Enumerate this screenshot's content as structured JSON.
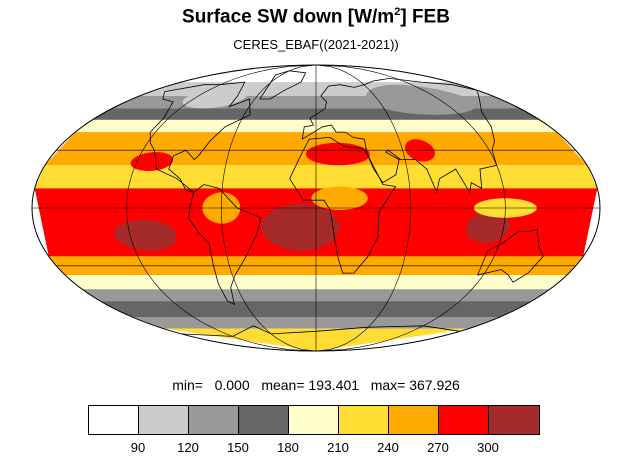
{
  "header": {
    "title_main": "Surface SW down [W/m",
    "title_sup": "2",
    "title_end": "]  FEB",
    "subtitle": "CERES_EBAF((2021-2021))"
  },
  "stats": {
    "min_label": "min=",
    "min": "0.000",
    "mean_label": "mean=",
    "mean": "193.401",
    "max_label": "max=",
    "max": "367.926"
  },
  "colorbar": {
    "colors": [
      "#ffffff",
      "#cccccc",
      "#999999",
      "#666666",
      "#ffffcc",
      "#ffdd33",
      "#ffaa00",
      "#ff0000",
      "#a52a2a"
    ],
    "labels": [
      "90",
      "120",
      "150",
      "180",
      "210",
      "240",
      "270",
      "300"
    ]
  },
  "map": {
    "projection": "Mollweide",
    "bands": [
      {
        "lat": [
          90,
          72
        ],
        "class": 0
      },
      {
        "lat": [
          72,
          62
        ],
        "class": 1
      },
      {
        "lat": [
          62,
          54
        ],
        "class": 2
      },
      {
        "lat": [
          54,
          47
        ],
        "class": 3
      },
      {
        "lat": [
          47,
          40
        ],
        "class": 4
      },
      {
        "lat": [
          40,
          22
        ],
        "class": 6
      },
      {
        "lat": [
          22,
          10
        ],
        "class": 5
      },
      {
        "lat": [
          10,
          -25
        ],
        "class": 7
      },
      {
        "lat": [
          -25,
          -35
        ],
        "class": 6
      },
      {
        "lat": [
          -35,
          -43
        ],
        "class": 4
      },
      {
        "lat": [
          -43,
          -50
        ],
        "class": 2
      },
      {
        "lat": [
          -50,
          -60
        ],
        "class": 3
      },
      {
        "lat": [
          -60,
          -68
        ],
        "class": 2
      },
      {
        "lat": [
          -68,
          -90
        ],
        "class": 5
      }
    ],
    "patches": [
      {
        "lat": 28,
        "lon": 15,
        "rlat": 6,
        "rlon": 22,
        "class": 7
      },
      {
        "lat": 24,
        "lon": -110,
        "rlat": 5,
        "rlon": 14,
        "class": 7
      },
      {
        "lat": 30,
        "lon": 72,
        "rlat": 6,
        "rlon": 10,
        "class": 7
      },
      {
        "lat": -10,
        "lon": -10,
        "rlat": 12,
        "rlon": 25,
        "class": 8
      },
      {
        "lat": -14,
        "lon": -110,
        "rlat": 8,
        "rlon": 20,
        "class": 8
      },
      {
        "lat": -10,
        "lon": 110,
        "rlat": 8,
        "rlon": 14,
        "class": 8
      },
      {
        "lat": 5,
        "lon": 15,
        "rlat": 6,
        "rlon": 18,
        "class": 6
      },
      {
        "lat": 0,
        "lon": -60,
        "rlat": 8,
        "rlon": 12,
        "class": 6
      },
      {
        "lat": 0,
        "lon": 120,
        "rlat": 5,
        "rlon": 20,
        "class": 5
      },
      {
        "lat": 60,
        "lon": 100,
        "rlat": 10,
        "rlon": 50,
        "class": 2
      },
      {
        "lat": 62,
        "lon": -100,
        "rlat": 8,
        "rlon": 30,
        "class": 1
      }
    ]
  }
}
